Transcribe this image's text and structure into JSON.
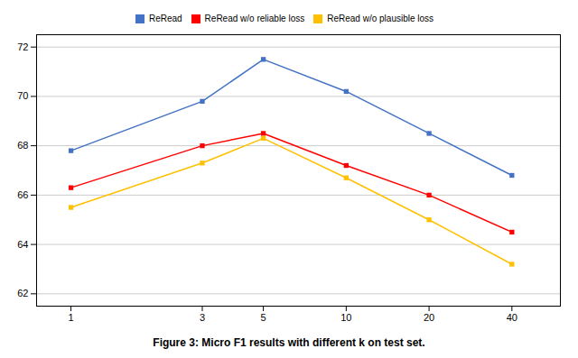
{
  "chart_data": {
    "type": "line",
    "caption": "Figure 3: Micro F1 results with different k on test set.",
    "x": [
      1,
      3,
      5,
      10,
      20,
      40
    ],
    "xlim": [
      0.75,
      60
    ],
    "xticks": [
      1,
      3,
      5,
      10,
      20,
      40
    ],
    "ylim": [
      61.5,
      72.5
    ],
    "yticks": [
      62,
      64,
      66,
      68,
      70,
      72
    ],
    "log": "x",
    "grid": true,
    "legend": "top",
    "marker": "square",
    "line_style": "solid",
    "series": [
      {
        "name": "ReRead",
        "color": "#4472C4",
        "values": [
          67.8,
          69.8,
          71.5,
          70.2,
          68.5,
          66.8
        ]
      },
      {
        "name": "ReRead w/o reliable loss",
        "color": "#FF0000",
        "values": [
          66.3,
          68.0,
          68.5,
          67.2,
          66.0,
          64.5
        ]
      },
      {
        "name": "ReRead w/o plausible loss",
        "color": "#FFC000",
        "values": [
          65.5,
          67.3,
          68.3,
          66.7,
          65.0,
          63.2
        ]
      }
    ]
  }
}
